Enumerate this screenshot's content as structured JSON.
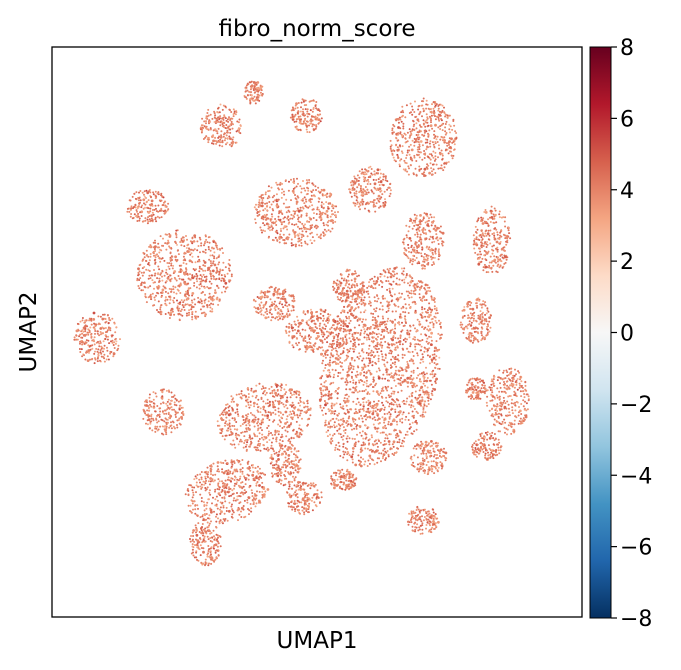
{
  "chart_data": {
    "type": "scatter",
    "title": "fibro_norm_score",
    "xlabel": "UMAP1",
    "ylabel": "UMAP2",
    "x_ticks": [],
    "y_ticks": [],
    "colorbar": {
      "colormap": "RdBu_r",
      "min": -8,
      "max": 8,
      "ticks": [
        8,
        6,
        4,
        2,
        0,
        -2,
        -4,
        -6,
        -8
      ],
      "tick_labels": [
        "8",
        "6",
        "4",
        "2",
        "0",
        "−2",
        "−4",
        "−6",
        "−8"
      ]
    },
    "typical_value": 4,
    "clusters": [
      {
        "cx": 0.33,
        "cy": 0.78,
        "rx": 0.08,
        "ry": 0.055,
        "rot": -15
      },
      {
        "cx": 0.29,
        "cy": 0.87,
        "rx": 0.03,
        "ry": 0.04,
        "rot": 0
      },
      {
        "cx": 0.475,
        "cy": 0.79,
        "rx": 0.035,
        "ry": 0.03,
        "rot": 0
      },
      {
        "cx": 0.55,
        "cy": 0.76,
        "rx": 0.025,
        "ry": 0.02,
        "rot": 0
      },
      {
        "cx": 0.7,
        "cy": 0.83,
        "rx": 0.03,
        "ry": 0.025,
        "rot": 0
      },
      {
        "cx": 0.71,
        "cy": 0.72,
        "rx": 0.035,
        "ry": 0.03,
        "rot": 0
      },
      {
        "cx": 0.82,
        "cy": 0.7,
        "rx": 0.03,
        "ry": 0.025,
        "rot": 0
      },
      {
        "cx": 0.8,
        "cy": 0.6,
        "rx": 0.02,
        "ry": 0.02,
        "rot": 0
      },
      {
        "cx": 0.44,
        "cy": 0.73,
        "rx": 0.03,
        "ry": 0.04,
        "rot": 0
      },
      {
        "cx": 0.21,
        "cy": 0.64,
        "rx": 0.04,
        "ry": 0.04,
        "rot": 0
      },
      {
        "cx": 0.4,
        "cy": 0.65,
        "rx": 0.09,
        "ry": 0.06,
        "rot": -10
      },
      {
        "cx": 0.62,
        "cy": 0.56,
        "rx": 0.11,
        "ry": 0.18,
        "rot": 15
      },
      {
        "cx": 0.86,
        "cy": 0.62,
        "rx": 0.04,
        "ry": 0.06,
        "rot": 0
      },
      {
        "cx": 0.8,
        "cy": 0.48,
        "rx": 0.03,
        "ry": 0.04,
        "rot": 0
      },
      {
        "cx": 0.085,
        "cy": 0.51,
        "rx": 0.045,
        "ry": 0.045,
        "rot": 0
      },
      {
        "cx": 0.25,
        "cy": 0.4,
        "rx": 0.09,
        "ry": 0.08,
        "rot": 0
      },
      {
        "cx": 0.5,
        "cy": 0.5,
        "rx": 0.06,
        "ry": 0.04,
        "rot": 0
      },
      {
        "cx": 0.42,
        "cy": 0.45,
        "rx": 0.04,
        "ry": 0.03,
        "rot": 0
      },
      {
        "cx": 0.56,
        "cy": 0.42,
        "rx": 0.03,
        "ry": 0.03,
        "rot": 0
      },
      {
        "cx": 0.83,
        "cy": 0.34,
        "rx": 0.035,
        "ry": 0.06,
        "rot": 0
      },
      {
        "cx": 0.7,
        "cy": 0.34,
        "rx": 0.04,
        "ry": 0.05,
        "rot": 0
      },
      {
        "cx": 0.18,
        "cy": 0.28,
        "rx": 0.04,
        "ry": 0.03,
        "rot": 0
      },
      {
        "cx": 0.46,
        "cy": 0.29,
        "rx": 0.08,
        "ry": 0.06,
        "rot": 0
      },
      {
        "cx": 0.6,
        "cy": 0.25,
        "rx": 0.04,
        "ry": 0.04,
        "rot": 0
      },
      {
        "cx": 0.7,
        "cy": 0.16,
        "rx": 0.065,
        "ry": 0.07,
        "rot": 0
      },
      {
        "cx": 0.32,
        "cy": 0.14,
        "rx": 0.04,
        "ry": 0.04,
        "rot": 0
      },
      {
        "cx": 0.48,
        "cy": 0.12,
        "rx": 0.03,
        "ry": 0.03,
        "rot": 0
      },
      {
        "cx": 0.38,
        "cy": 0.08,
        "rx": 0.02,
        "ry": 0.02,
        "rot": 0
      }
    ]
  }
}
